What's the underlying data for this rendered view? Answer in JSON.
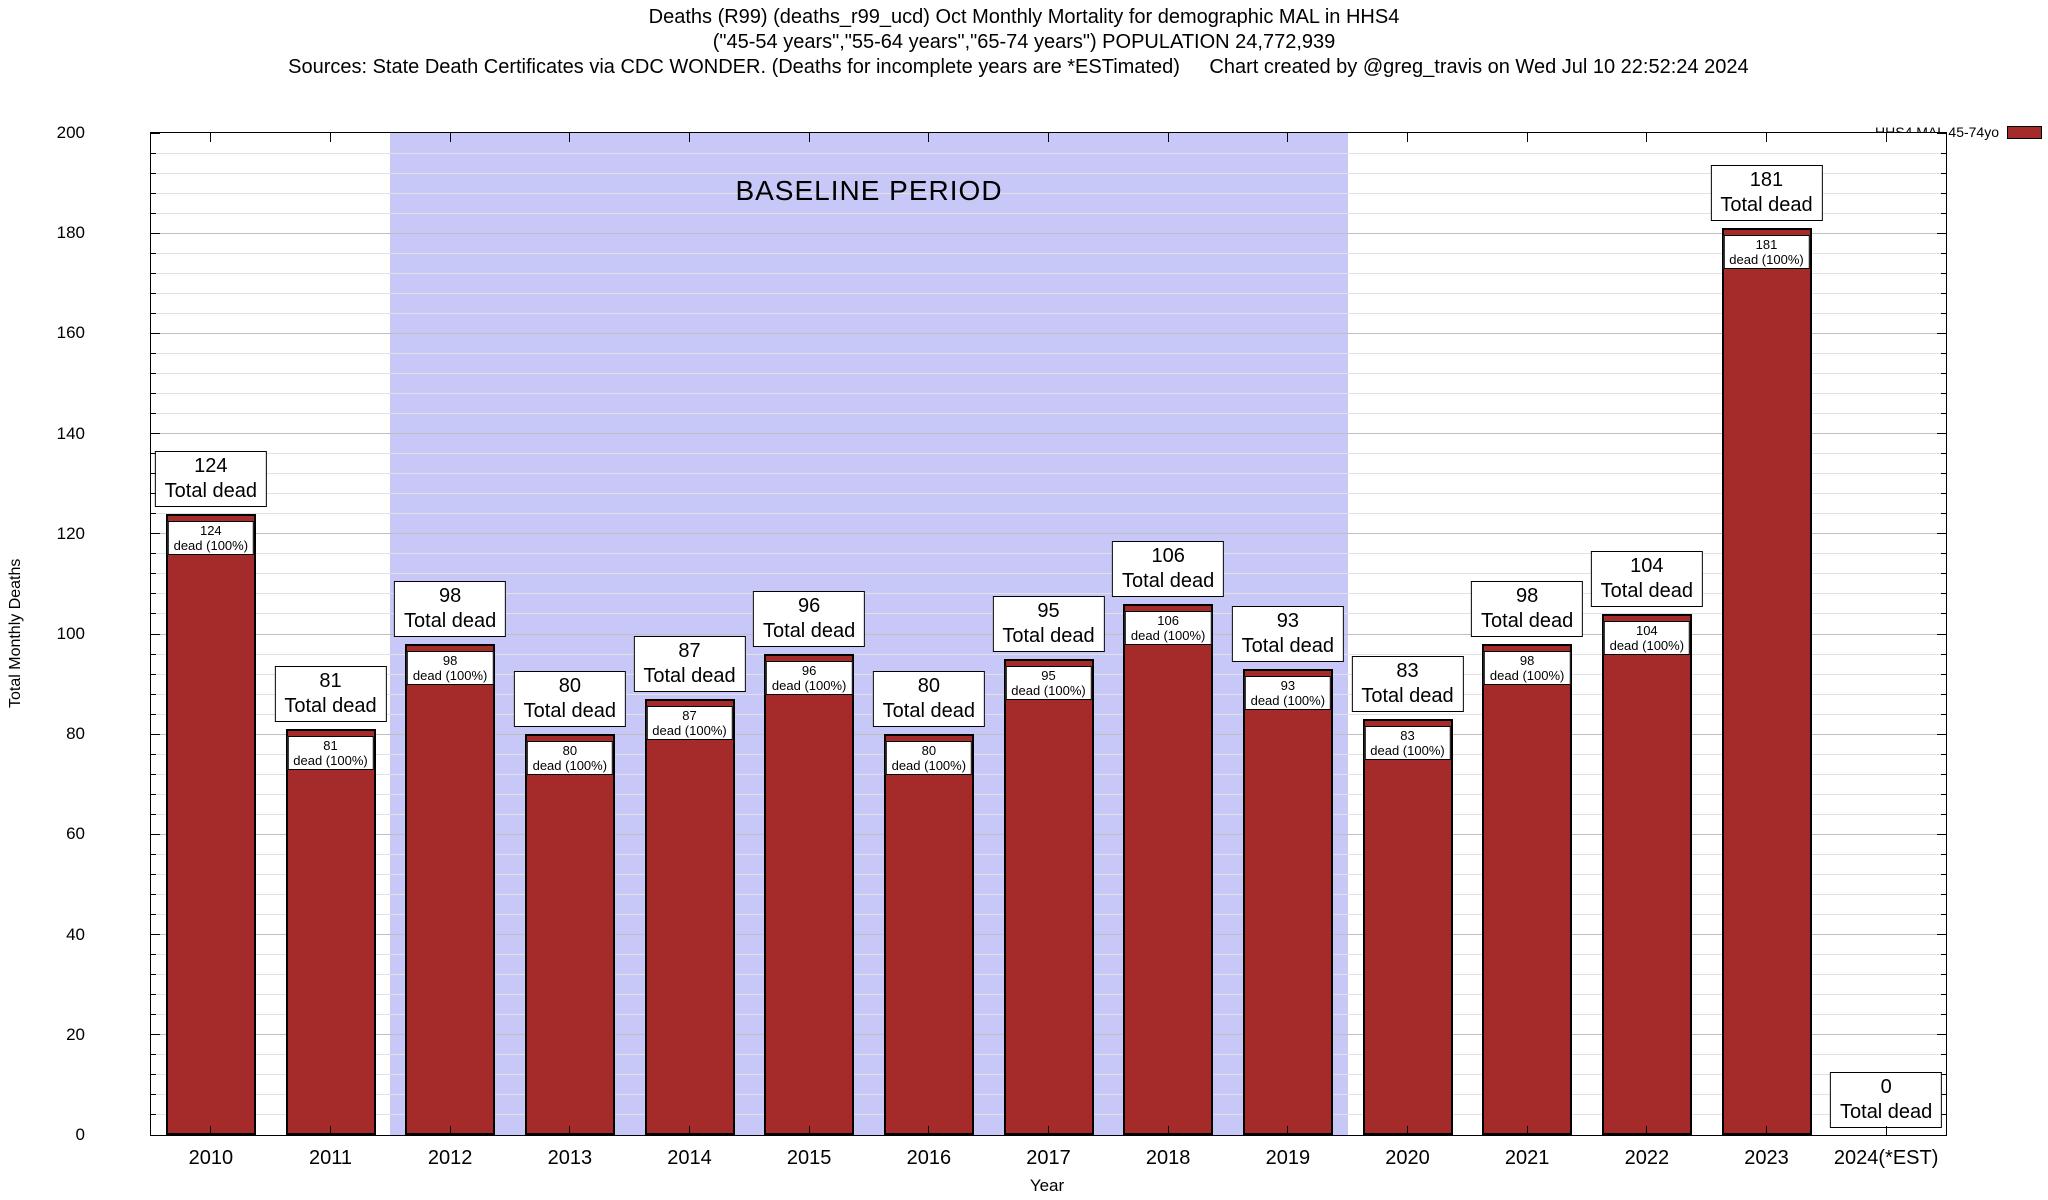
{
  "header": {
    "title_line1": "Deaths (R99) (deaths_r99_ucd) Oct Monthly Mortality for demographic MAL in HHS4",
    "title_line2": "(\"45-54 years\",\"55-64 years\",\"65-74 years\") POPULATION 24,772,939",
    "sources": "Sources: State Death Certificates via CDC WONDER. (Deaths for incomplete years are *ESTimated)",
    "credit": "Chart created by @greg_travis on Wed Jul 10 22:52:24 2024"
  },
  "legend": {
    "label": "HHS4 MAL 45-74yo",
    "swatch_color": "#a52a2a"
  },
  "axes": {
    "x_label": "Year",
    "y_label": "Total Monthly Deaths",
    "y_min": 0,
    "y_max": 200,
    "y_tick_step": 20,
    "y_minor_step": 4
  },
  "chart_data": {
    "type": "bar",
    "title": "Deaths (R99) (deaths_r99_ucd) Oct Monthly Mortality for demographic MAL in HHS4",
    "subtitle": "(\"45-54 years\",\"55-64 years\",\"65-74 years\") POPULATION 24,772,939",
    "xlabel": "Year",
    "ylabel": "Total Monthly Deaths",
    "ylim": [
      0,
      200
    ],
    "grid": true,
    "legend_position": "outside-top-right",
    "series_name": "HHS4 MAL 45-74yo",
    "bar_color": "#a52a2a",
    "categories": [
      "2010",
      "2011",
      "2012",
      "2013",
      "2014",
      "2015",
      "2016",
      "2017",
      "2018",
      "2019",
      "2020",
      "2021",
      "2022",
      "2023",
      "2024(*EST)"
    ],
    "values": [
      124,
      81,
      98,
      80,
      87,
      96,
      80,
      95,
      106,
      93,
      83,
      98,
      104,
      181,
      0
    ],
    "labels": {
      "total_line": "Total dead",
      "inner_line": "dead (100%)"
    },
    "baseline_region": {
      "label": "BASELINE PERIOD",
      "from_category": "2012",
      "to_category": "2019",
      "color": "#c8c8f8"
    }
  }
}
